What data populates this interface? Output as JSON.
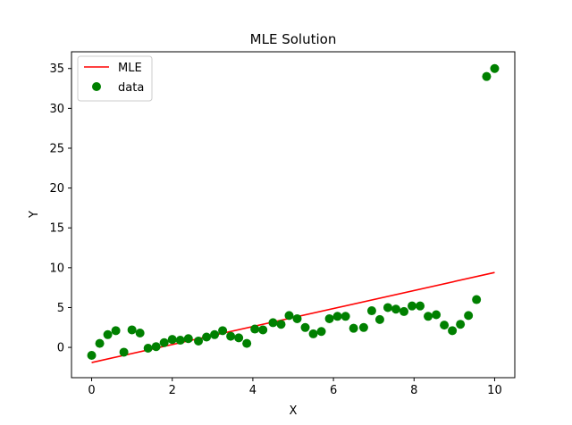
{
  "chart_data": {
    "type": "scatter",
    "title": "MLE Solution",
    "xlabel": "X",
    "ylabel": "Y",
    "xlim": [
      -0.5,
      10.5
    ],
    "ylim": [
      -3.8,
      37.1
    ],
    "xticks": [
      0,
      2,
      4,
      6,
      8,
      10
    ],
    "yticks": [
      0,
      5,
      10,
      15,
      20,
      25,
      30,
      35
    ],
    "grid": false,
    "legend_position": "top-left",
    "series": [
      {
        "name": "MLE",
        "kind": "line",
        "color": "#ff0000",
        "x": [
          0,
          10
        ],
        "y": [
          -1.9,
          9.4
        ]
      },
      {
        "name": "data",
        "kind": "scatter",
        "color": "#008000",
        "x": [
          0.0,
          0.2,
          0.4,
          0.6,
          0.8,
          1.0,
          1.2,
          1.4,
          1.6,
          1.8,
          2.0,
          2.2,
          2.4,
          2.65,
          2.85,
          3.05,
          3.25,
          3.45,
          3.65,
          3.85,
          4.05,
          4.25,
          4.5,
          4.7,
          4.9,
          5.1,
          5.3,
          5.5,
          5.7,
          5.9,
          6.1,
          6.3,
          6.5,
          6.75,
          6.95,
          7.15,
          7.35,
          7.55,
          7.75,
          7.95,
          8.15,
          8.35,
          8.55,
          8.75,
          8.95,
          9.15,
          9.35,
          9.55,
          9.8,
          10.0
        ],
        "y": [
          -1.0,
          0.5,
          1.6,
          2.1,
          -0.6,
          2.2,
          1.8,
          -0.1,
          0.1,
          0.6,
          1.0,
          0.9,
          1.1,
          0.8,
          1.3,
          1.6,
          2.1,
          1.4,
          1.2,
          0.5,
          2.3,
          2.2,
          3.1,
          2.9,
          4.0,
          3.6,
          2.5,
          1.7,
          2.0,
          3.6,
          3.9,
          3.9,
          2.4,
          2.5,
          4.6,
          3.5,
          5.0,
          4.8,
          4.5,
          5.2,
          5.2,
          3.9,
          4.1,
          2.8,
          2.1,
          2.9,
          4.0,
          6.0,
          34.0,
          35.0
        ]
      }
    ]
  }
}
